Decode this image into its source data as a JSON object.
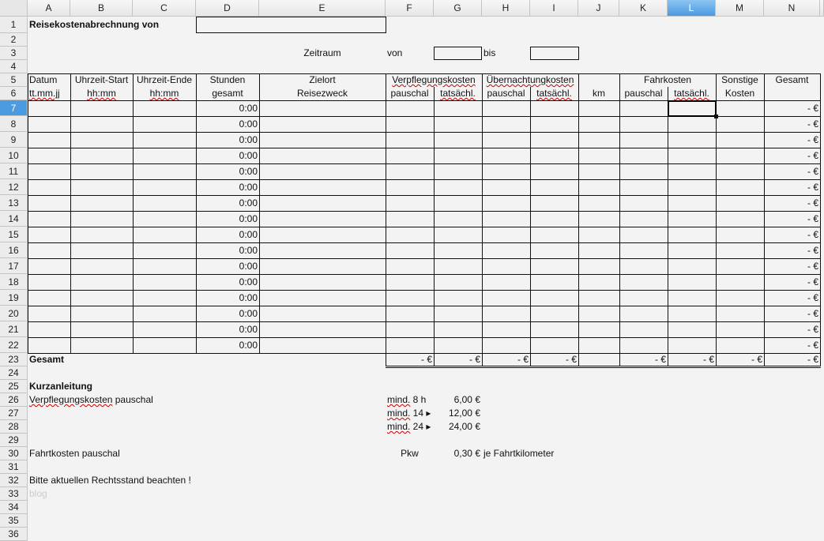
{
  "columns": [
    "A",
    "B",
    "C",
    "D",
    "E",
    "F",
    "G",
    "H",
    "I",
    "J",
    "K",
    "L",
    "M",
    "N"
  ],
  "selected_column": "L",
  "selected_row": 7,
  "row_count": 36,
  "title": "Reisekostenabrechnung von",
  "zeitraum": {
    "label": "Zeitraum",
    "von": "von",
    "bis": "bis"
  },
  "headers": {
    "A": [
      "Datum",
      "tt.mm.jj"
    ],
    "B": [
      "Uhrzeit-Start",
      "hh:mm"
    ],
    "C": [
      "Uhrzeit-Ende",
      "hh:mm"
    ],
    "D": [
      "Stunden",
      "gesamt"
    ],
    "E": [
      "Zielort",
      "Reisezweck"
    ],
    "FG": "Verpflegungskosten",
    "HI": "Übernachtungkosten",
    "KL": "Fahrkosten",
    "F": "pauschal",
    "G": "tatsächl.",
    "H": "pauschal",
    "I": "tatsächl.",
    "J": "km",
    "K": "pauschal",
    "L": "tatsächl.",
    "M": [
      "Sonstige",
      "Kosten"
    ],
    "N": "Gesamt"
  },
  "body_rows": {
    "first": 7,
    "last": 22,
    "stunden": "0:00",
    "gesamt": "-   €"
  },
  "total": {
    "label": "Gesamt",
    "value": "-   €",
    "columns": [
      "F",
      "G",
      "H",
      "I",
      "K",
      "L",
      "M",
      "N"
    ]
  },
  "guide": {
    "title": "Kurzanleitung",
    "verpflegung_label": "Verpflegungskosten pauschal",
    "rates": [
      {
        "min": "mind. 8 h",
        "amount": "6,00 €"
      },
      {
        "min": "mind. 14",
        "amount": "12,00 €"
      },
      {
        "min": "mind. 24",
        "amount": "24,00 €"
      }
    ],
    "fahrt_label": "Fahrtkosten pauschal",
    "pkw": "Pkw",
    "pkw_rate": "0,30 €",
    "pkw_unit": "je Fahrtkilometer",
    "note": "Bitte aktuellen Rechtsstand beachten !",
    "watermark": "blog"
  }
}
